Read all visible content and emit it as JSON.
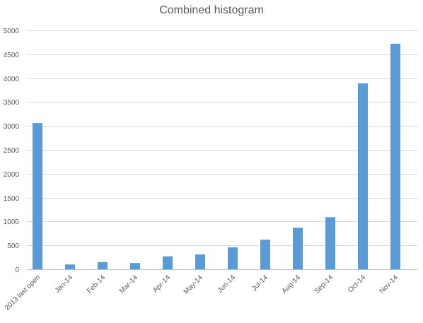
{
  "chart_data": {
    "type": "bar",
    "title": "Combined histogram",
    "xlabel": "",
    "ylabel": "",
    "categories": [
      "2013 last open",
      "Jan-14",
      "Feb-14",
      "Mar-14",
      "Apr-14",
      "May-14",
      "Jun-14",
      "Jul-14",
      "Aug-14",
      "Sep-14",
      "Oct-14",
      "Nov-14"
    ],
    "values": [
      3060,
      100,
      150,
      130,
      270,
      310,
      460,
      620,
      870,
      1090,
      3890,
      4720
    ],
    "ylim": [
      0,
      5000
    ],
    "yticks": [
      0,
      500,
      1000,
      1500,
      2000,
      2500,
      3000,
      3500,
      4000,
      4500,
      5000
    ],
    "grid": true,
    "legend": "none",
    "bar_color": "#5b9bd5"
  }
}
